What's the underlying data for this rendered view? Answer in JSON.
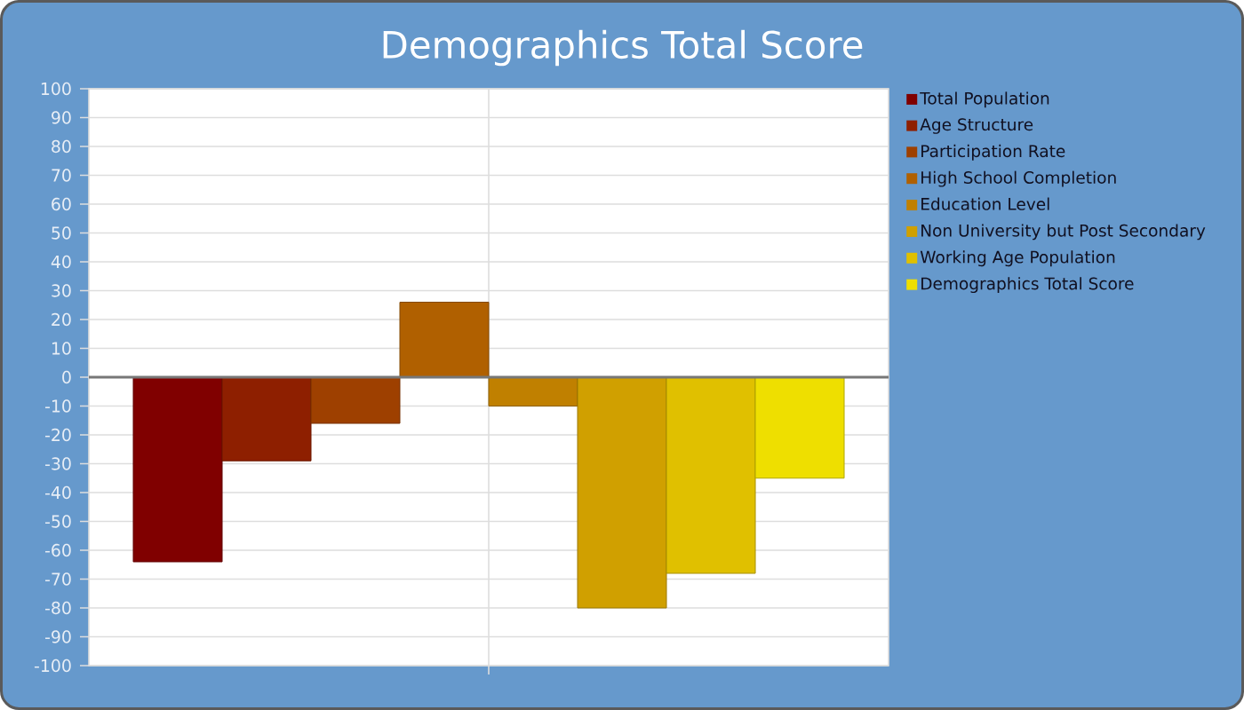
{
  "chart_data": {
    "type": "bar",
    "title": "Demographics Total Score",
    "categories": [
      null
    ],
    "series": [
      {
        "name": "Total Population",
        "color": "#800000",
        "values": [
          -64
        ]
      },
      {
        "name": "Age Structure",
        "color": "#8e1f00",
        "values": [
          -29
        ]
      },
      {
        "name": "Participation Rate",
        "color": "#9e4000",
        "values": [
          -16
        ]
      },
      {
        "name": "High School Completion",
        "color": "#b06000",
        "values": [
          26
        ]
      },
      {
        "name": "Education Level",
        "color": "#c08000",
        "values": [
          -10
        ]
      },
      {
        "name": "Non University but Post Secondary",
        "color": "#d0a000",
        "values": [
          -80
        ]
      },
      {
        "name": "Working Age Population",
        "color": "#e0c000",
        "values": [
          -68
        ]
      },
      {
        "name": "Demographics Total Score",
        "color": "#eedf00",
        "values": [
          -35
        ]
      }
    ],
    "ylim": [
      -100,
      100
    ],
    "yticks": [
      -100,
      -90,
      -80,
      -70,
      -60,
      -50,
      -40,
      -30,
      -20,
      -10,
      0,
      10,
      20,
      30,
      40,
      50,
      60,
      70,
      80,
      90,
      100
    ],
    "grid": true,
    "legend": "right"
  }
}
